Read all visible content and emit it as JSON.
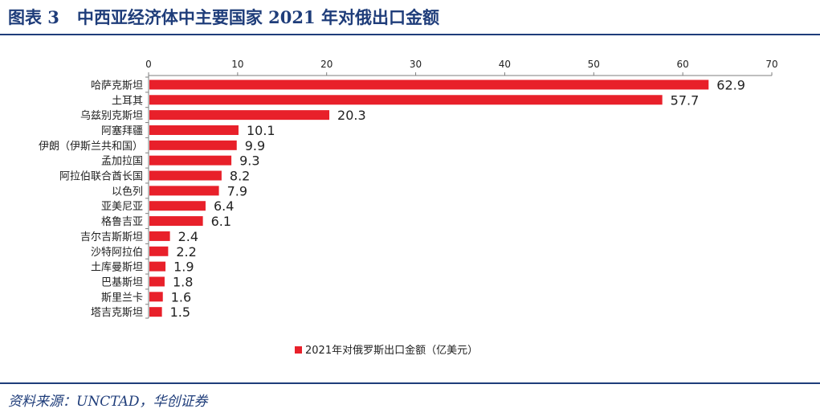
{
  "header": {
    "figure_label": "图表 3",
    "title": "中西亚经济体中主要国家 2021 年对俄出口金额"
  },
  "source": "资料来源：UNCTAD，华创证券",
  "chart_data": {
    "type": "bar",
    "orientation": "horizontal",
    "categories": [
      "哈萨克斯坦",
      "土耳其",
      "乌兹别克斯坦",
      "阿塞拜疆",
      "伊朗（伊斯兰共和国）",
      "孟加拉国",
      "阿拉伯联合酋长国",
      "以色列",
      "亚美尼亚",
      "格鲁吉亚",
      "吉尔吉斯斯坦",
      "沙特阿拉伯",
      "土库曼斯坦",
      "巴基斯坦",
      "斯里兰卡",
      "塔吉克斯坦"
    ],
    "series": [
      {
        "name": "2021年对俄罗斯出口金额（亿美元）",
        "values": [
          62.9,
          57.7,
          20.3,
          10.1,
          9.9,
          9.3,
          8.2,
          7.9,
          6.4,
          6.1,
          2.4,
          2.2,
          1.9,
          1.8,
          1.6,
          1.5
        ],
        "labels": [
          "62.9",
          "57.7",
          "20.3",
          "10.1",
          "9.9",
          "9.3",
          "8.2",
          "7.9",
          "6.4",
          "6.1",
          "2.4",
          "2.2",
          "1.9",
          "1.8",
          "1.6",
          "1.5"
        ]
      }
    ],
    "x_ticks": [
      "0",
      "10",
      "20",
      "30",
      "40",
      "50",
      "60",
      "70"
    ],
    "xlim": [
      0,
      70
    ],
    "x_axis_position": "top",
    "grid": false,
    "legend_position": "bottom-center",
    "bar_color": "#e8202a"
  }
}
